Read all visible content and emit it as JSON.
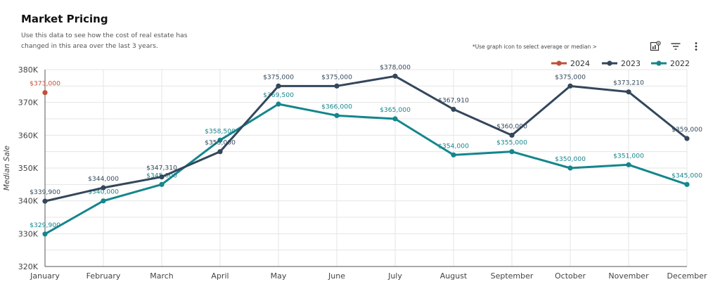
{
  "header": {
    "title": "Market Pricing",
    "subtitle": "Use this data to see how the cost of real estate has changed in this area over the last 3 years.",
    "hint": "*Use graph icon to  select average or median >"
  },
  "toolbar": {
    "icons": [
      "chart-settings-icon",
      "filter-icon",
      "more-vertical-icon"
    ]
  },
  "chart_data": {
    "type": "line",
    "title": "",
    "xlabel": "",
    "ylabel": "Median Sale",
    "categories": [
      "January",
      "February",
      "March",
      "April",
      "May",
      "June",
      "July",
      "August",
      "September",
      "October",
      "November",
      "December"
    ],
    "ylim": [
      320000,
      380000
    ],
    "yticks": [
      320000,
      330000,
      340000,
      350000,
      360000,
      370000,
      380000
    ],
    "ytick_labels": [
      "320K",
      "330K",
      "340K",
      "350K",
      "360K",
      "370K",
      "380K"
    ],
    "grid": true,
    "legend_position": "top-right",
    "series": [
      {
        "name": "2024",
        "color": "#c0503a",
        "values": [
          373000,
          null,
          null,
          null,
          null,
          null,
          null,
          null,
          null,
          null,
          null,
          null
        ],
        "labels": [
          "$373,000",
          "",
          "",
          "",
          "",
          "",
          "",
          "",
          "",
          "",
          "",
          ""
        ]
      },
      {
        "name": "2023",
        "color": "#33475b",
        "values": [
          339900,
          344000,
          347310,
          355000,
          375000,
          375000,
          378000,
          367910,
          360000,
          375000,
          373210,
          359000
        ],
        "labels": [
          "$339,900",
          "$344,000",
          "$347,310",
          "$355,000",
          "$375,000",
          "$375,000",
          "$378,000",
          "$367,910",
          "$360,000",
          "$375,000",
          "$373,210",
          "$359,000"
        ]
      },
      {
        "name": "2022",
        "color": "#14868c",
        "values": [
          329900,
          340000,
          345000,
          358500,
          369500,
          366000,
          365000,
          354000,
          355000,
          350000,
          351000,
          345000
        ],
        "labels": [
          "$329,900",
          "$340,000",
          "$345,000",
          "$358,500",
          "$369,500",
          "$366,000",
          "$365,000",
          "$354,000",
          "$355,000",
          "$350,000",
          "$351,000",
          "$345,000"
        ]
      }
    ]
  }
}
